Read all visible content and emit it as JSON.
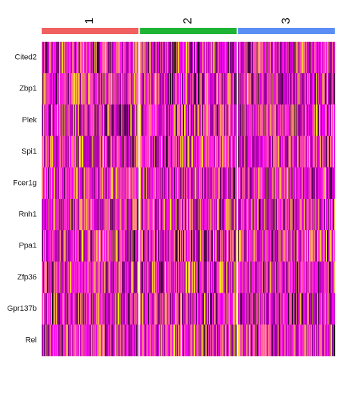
{
  "chart_data": {
    "type": "heatmap",
    "title": "",
    "xlabel": "",
    "ylabel": "",
    "genes": [
      "Cited2",
      "Zbp1",
      "Plek",
      "Spi1",
      "Fcer1g",
      "Rnh1",
      "Ppa1",
      "Zfp36",
      "Gpr137b",
      "Rel"
    ],
    "clusters": [
      {
        "name": "1",
        "color": "#F06060"
      },
      {
        "name": "2",
        "color": "#1EB434"
      },
      {
        "name": "3",
        "color": "#5B8EF5"
      }
    ],
    "cells_per_cluster": 140,
    "color_scale": {
      "low": "#000000",
      "mid": "#FF00FF",
      "high": "#FFFF00",
      "range": [
        -2.5,
        2.5
      ]
    },
    "expression_profile": [
      {
        "gene": "Cited2",
        "mean_scaled": [
          0.1,
          0.0,
          -0.1
        ]
      },
      {
        "gene": "Zbp1",
        "mean_scaled": [
          0.3,
          -0.1,
          -0.2
        ]
      },
      {
        "gene": "Plek",
        "mean_scaled": [
          0.0,
          0.1,
          -0.1
        ]
      },
      {
        "gene": "Spi1",
        "mean_scaled": [
          -0.1,
          0.1,
          0.0
        ]
      },
      {
        "gene": "Fcer1g",
        "mean_scaled": [
          0.2,
          -0.1,
          -0.1
        ]
      },
      {
        "gene": "Rnh1",
        "mean_scaled": [
          0.0,
          0.0,
          0.0
        ]
      },
      {
        "gene": "Ppa1",
        "mean_scaled": [
          0.1,
          -0.1,
          0.0
        ]
      },
      {
        "gene": "Zfp36",
        "mean_scaled": [
          0.1,
          0.0,
          -0.1
        ]
      },
      {
        "gene": "Gpr137b",
        "mean_scaled": [
          0.0,
          0.1,
          -0.1
        ]
      },
      {
        "gene": "Rel",
        "mean_scaled": [
          0.0,
          0.0,
          0.0
        ]
      }
    ],
    "legend": "none",
    "grid": false
  }
}
